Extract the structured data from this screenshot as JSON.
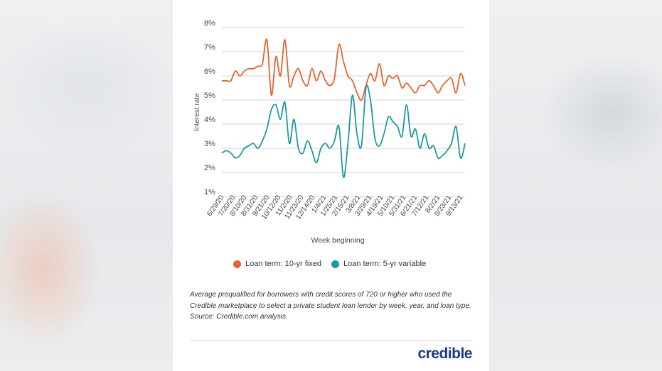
{
  "chart_data": {
    "type": "line",
    "ylabel": "Interest rate",
    "xlabel": "Week beginning",
    "ylim": [
      1,
      8
    ],
    "yticks": [
      "8%",
      "7%",
      "6%",
      "5%",
      "4%",
      "3%",
      "2%",
      "1%"
    ],
    "x_tick_labels": [
      "6/29/20",
      "7/20/20",
      "8/10/20",
      "8/31/20",
      "9/21/20",
      "10/12/20",
      "11/2/20",
      "11/23/20",
      "12/14/20",
      "1/4/21",
      "1/25/21",
      "2/15/21",
      "3/8/21",
      "3/29/21",
      "4/19/21",
      "5/10/21",
      "5/31/21",
      "6/21/21",
      "7/12/21",
      "8/2/21",
      "8/23/21",
      "9/13/21"
    ],
    "legend_position": "bottom",
    "series": [
      {
        "name": "Loan term: 10-yr fixed",
        "color": "#e8632b",
        "values": [
          5.8,
          5.8,
          5.8,
          6.2,
          6.0,
          6.2,
          6.3,
          6.3,
          6.4,
          6.5,
          7.5,
          5.2,
          6.8,
          6.0,
          7.5,
          5.6,
          6.0,
          6.3,
          5.8,
          5.6,
          6.3,
          5.8,
          6.2,
          5.8,
          5.6,
          5.9,
          7.3,
          6.6,
          6.0,
          5.8,
          5.3,
          5.0,
          5.6,
          6.1,
          5.8,
          6.5,
          5.6,
          6.0,
          5.9,
          6.0,
          5.5,
          5.7,
          5.5,
          5.3,
          5.6,
          5.6,
          5.8,
          5.6,
          5.3,
          5.6,
          5.8,
          5.9,
          5.3,
          6.1,
          5.6
        ]
      },
      {
        "name": "Loan term: 5-yr variable",
        "color": "#1b9aa0",
        "values": [
          2.8,
          2.9,
          2.8,
          2.6,
          2.7,
          3.0,
          3.1,
          3.2,
          3.0,
          3.3,
          3.8,
          4.6,
          4.8,
          4.2,
          4.9,
          3.2,
          4.2,
          3.0,
          2.8,
          3.3,
          2.9,
          2.4,
          3.0,
          3.2,
          3.0,
          3.3,
          3.9,
          1.8,
          3.2,
          5.2,
          3.6,
          3.1,
          5.5,
          5.0,
          3.4,
          3.1,
          3.6,
          4.3,
          4.1,
          3.9,
          3.5,
          4.8,
          3.5,
          3.8,
          3.0,
          3.6,
          3.0,
          3.1,
          2.6,
          2.7,
          2.9,
          3.2,
          3.9,
          2.6,
          3.2
        ]
      }
    ]
  },
  "caption": "Average prequalified for borrowers with credit scores of 720 or higher who used the Credible marketplace to select a private student loan lender by week, year, and loan type. Source: Credible.com analysis.",
  "logo_text": "credible"
}
